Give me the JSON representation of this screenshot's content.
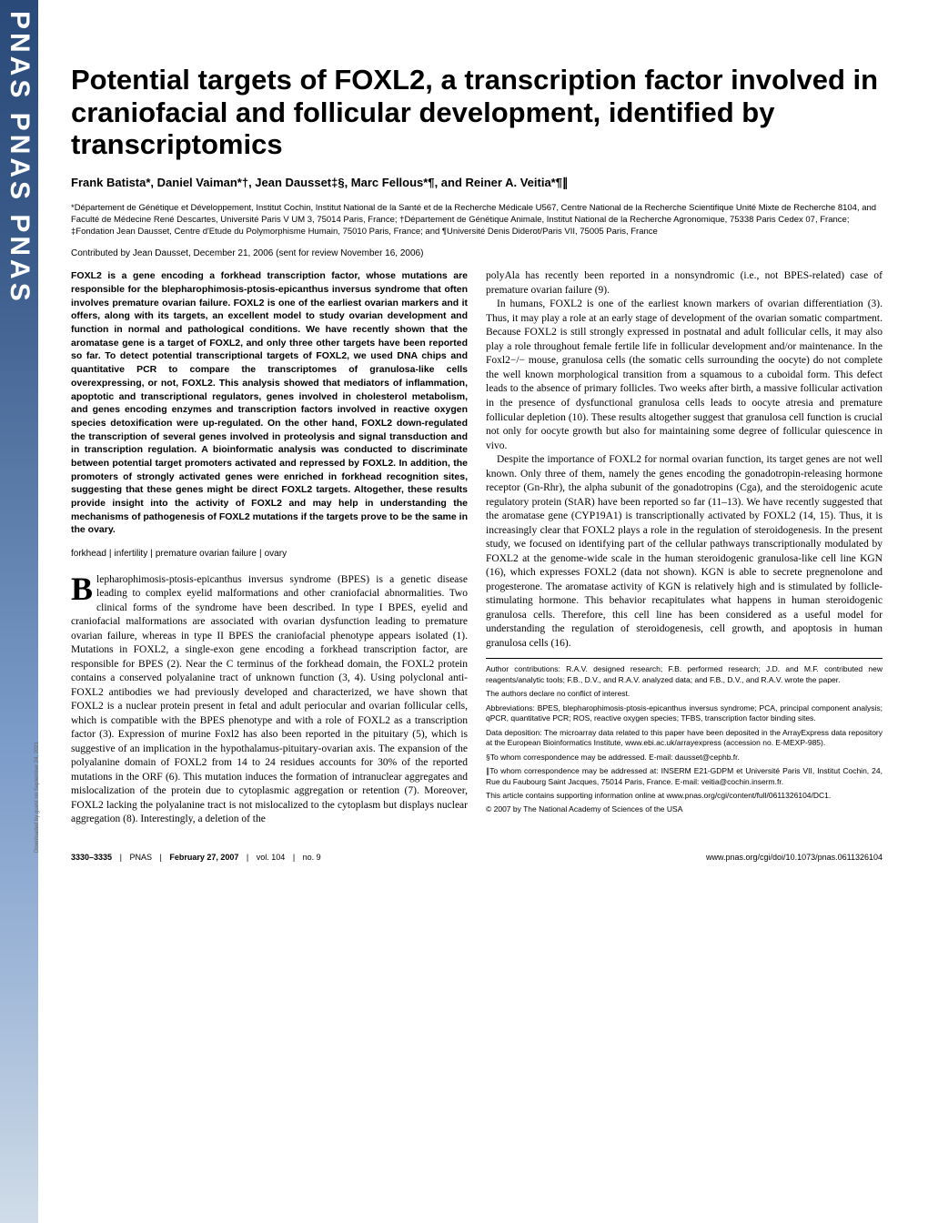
{
  "sidebar": {
    "logo_text": "PNAS  PNAS  PNAS"
  },
  "title": "Potential targets of FOXL2, a transcription factor involved in craniofacial and follicular development, identified by transcriptomics",
  "authors": "Frank Batista*, Daniel Vaiman*†, Jean Dausset‡§, Marc Fellous*¶, and Reiner A. Veitia*¶∥",
  "affiliations": "*Département de Génétique et Développement, Institut Cochin, Institut National de la Santé et de la Recherche Médicale U567, Centre National de la Recherche Scientifique Unité Mixte de Recherche 8104, and Faculté de Médecine René Descartes, Université Paris V UM 3, 75014 Paris, France; †Département de Génétique Animale, Institut National de la Recherche Agronomique, 75338 Paris Cedex 07, France; ‡Fondation Jean Dausset, Centre d'Etude du Polymorphisme Humain, 75010 Paris, France; and ¶Université Denis Diderot/Paris VII, 75005 Paris, France",
  "contributed": "Contributed by Jean Dausset, December 21, 2006 (sent for review November 16, 2006)",
  "abstract": "FOXL2 is a gene encoding a forkhead transcription factor, whose mutations are responsible for the blepharophimosis-ptosis-epicanthus inversus syndrome that often involves premature ovarian failure. FOXL2 is one of the earliest ovarian markers and it offers, along with its targets, an excellent model to study ovarian development and function in normal and pathological conditions. We have recently shown that the aromatase gene is a target of FOXL2, and only three other targets have been reported so far. To detect potential transcriptional targets of FOXL2, we used DNA chips and quantitative PCR to compare the transcriptomes of granulosa-like cells overexpressing, or not, FOXL2. This analysis showed that mediators of inflammation, apoptotic and transcriptional regulators, genes involved in cholesterol metabolism, and genes encoding enzymes and transcription factors involved in reactive oxygen species detoxification were up-regulated. On the other hand, FOXL2 down-regulated the transcription of several genes involved in proteolysis and signal transduction and in transcription regulation. A bioinformatic analysis was conducted to discriminate between potential target promoters activated and repressed by FOXL2. In addition, the promoters of strongly activated genes were enriched in forkhead recognition sites, suggesting that these genes might be direct FOXL2 targets. Altogether, these results provide insight into the activity of FOXL2 and may help in understanding the mechanisms of pathogenesis of FOXL2 mutations if the targets prove to be the same in the ovary.",
  "keywords": [
    "forkhead",
    "infertility",
    "premature ovarian failure",
    "ovary"
  ],
  "col1_body_first_letter": "B",
  "col1_body_rest": "lepharophimosis-ptosis-epicanthus inversus syndrome (BPES) is a genetic disease leading to complex eyelid malformations and other craniofacial abnormalities. Two clinical forms of the syndrome have been described. In type I BPES, eyelid and craniofacial malformations are associated with ovarian dysfunction leading to premature ovarian failure, whereas in type II BPES the craniofacial phenotype appears isolated (1). Mutations in FOXL2, a single-exon gene encoding a forkhead transcription factor, are responsible for BPES (2). Near the C terminus of the forkhead domain, the FOXL2 protein contains a conserved polyalanine tract of unknown function (3, 4). Using polyclonal anti-FOXL2 antibodies we had previously developed and characterized, we have shown that FOXL2 is a nuclear protein present in fetal and adult periocular and ovarian follicular cells, which is compatible with the BPES phenotype and with a role of FOXL2 as a transcription factor (3). Expression of murine Foxl2 has also been reported in the pituitary (5), which is suggestive of an implication in the hypothalamus-pituitary-ovarian axis. The expansion of the polyalanine domain of FOXL2 from 14 to 24 residues accounts for 30% of the reported mutations in the ORF (6). This mutation induces the formation of intranuclear aggregates and mislocalization of the protein due to cytoplasmic aggregation or retention (7). Moreover, FOXL2 lacking the polyalanine tract is not mislocalized to the cytoplasm but displays nuclear aggregation (8). Interestingly, a deletion of the",
  "col2_para1": "polyAla has recently been reported in a nonsyndromic (i.e., not BPES-related) case of premature ovarian failure (9).",
  "col2_para2": "In humans, FOXL2 is one of the earliest known markers of ovarian differentiation (3). Thus, it may play a role at an early stage of development of the ovarian somatic compartment. Because FOXL2 is still strongly expressed in postnatal and adult follicular cells, it may also play a role throughout female fertile life in follicular development and/or maintenance. In the Foxl2−/− mouse, granulosa cells (the somatic cells surrounding the oocyte) do not complete the well known morphological transition from a squamous to a cuboidal form. This defect leads to the absence of primary follicles. Two weeks after birth, a massive follicular activation in the presence of dysfunctional granulosa cells leads to oocyte atresia and premature follicular depletion (10). These results altogether suggest that granulosa cell function is crucial not only for oocyte growth but also for maintaining some degree of follicular quiescence in vivo.",
  "col2_para3": "Despite the importance of FOXL2 for normal ovarian function, its target genes are not well known. Only three of them, namely the genes encoding the gonadotropin-releasing hormone receptor (Gn-Rhr), the alpha subunit of the gonadotropins (Cga), and the steroidogenic acute regulatory protein (StAR) have been reported so far (11–13). We have recently suggested that the aromatase gene (CYP19A1) is transcriptionally activated by FOXL2 (14, 15). Thus, it is increasingly clear that FOXL2 plays a role in the regulation of steroidogenesis. In the present study, we focused on identifying part of the cellular pathways transcriptionally modulated by FOXL2 at the genome-wide scale in the human steroidogenic granulosa-like cell line KGN (16), which expresses FOXL2 (data not shown). KGN is able to secrete pregnenolone and progesterone. The aromatase activity of KGN is relatively high and is stimulated by follicle-stimulating hormone. This behavior recapitulates what happens in human steroidogenic granulosa cells. Therefore, this cell line has been considered as a useful model for understanding the regulation of steroidogenesis, cell growth, and apoptosis in human granulosa cells (16).",
  "footnotes": {
    "author_contrib": "Author contributions: R.A.V. designed research; F.B. performed research; J.D. and M.F. contributed new reagents/analytic tools; F.B., D.V., and R.A.V. analyzed data; and F.B., D.V., and R.A.V. wrote the paper.",
    "conflict": "The authors declare no conflict of interest.",
    "abbrev": "Abbreviations: BPES, blepharophimosis-ptosis-epicanthus inversus syndrome; PCA, principal component analysis; qPCR, quantitative PCR; ROS, reactive oxygen species; TFBS, transcription factor binding sites.",
    "data_dep": "Data deposition: The microarray data related to this paper have been deposited in the ArrayExpress data repository at the European Bioinformatics Institute, www.ebi.ac.uk/arrayexpress (accession no. E-MEXP-985).",
    "corr1": "§To whom correspondence may be addressed. E-mail: dausset@cephb.fr.",
    "corr2": "∥To whom correspondence may be addressed at: INSERM E21-GDPM et Université Paris VII, Institut Cochin, 24, Rue du Faubourg Saint Jacques, 75014 Paris, France. E-mail: veitia@cochin.inserm.fr.",
    "supp": "This article contains supporting information online at www.pnas.org/cgi/content/full/0611326104/DC1.",
    "copyright": "© 2007 by The National Academy of Sciences of the USA"
  },
  "footer": {
    "pages": "3330–3335",
    "journal": "PNAS",
    "date": "February 27, 2007",
    "vol": "vol. 104",
    "issue": "no. 9",
    "doi": "www.pnas.org/cgi/doi/10.1073/pnas.0611326104"
  },
  "download_note": "Downloaded by guest on September 24, 2021"
}
